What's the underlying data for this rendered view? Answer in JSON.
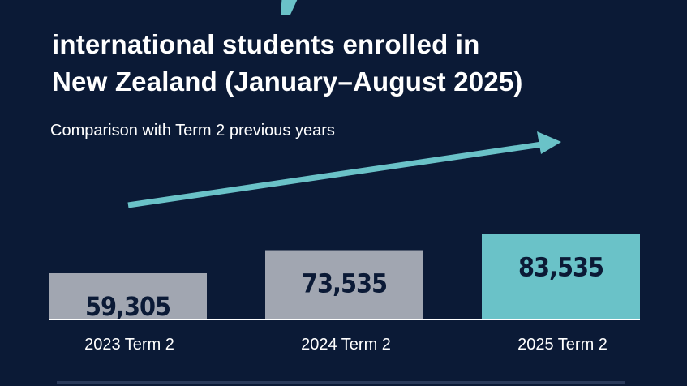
{
  "title": {
    "line1": "international students enrolled in",
    "line2": "New Zealand (January–August 2025)"
  },
  "subtitle": "Comparison with Term 2 previous years",
  "colors": {
    "background": "#0b1a36",
    "bar_default": "#a1a6b1",
    "bar_highlight": "#6ac2c8",
    "arrow": "#6ac2c8",
    "value_text": "#0b1a36",
    "label_text": "#ffffff"
  },
  "chart_data": {
    "type": "bar",
    "categories": [
      "2023 Term 2",
      "2024 Term 2",
      "2025 Term 2"
    ],
    "values": [
      59305,
      73535,
      83535
    ],
    "value_labels": [
      "59,305",
      "73,535",
      "83,535"
    ],
    "highlight_index": 2,
    "title": "international students enrolled in New Zealand (January–August 2025)",
    "subtitle": "Comparison with Term 2 previous years",
    "xlabel": "",
    "ylabel": "",
    "trend_arrow": "upward",
    "grid": false,
    "legend": "none"
  }
}
